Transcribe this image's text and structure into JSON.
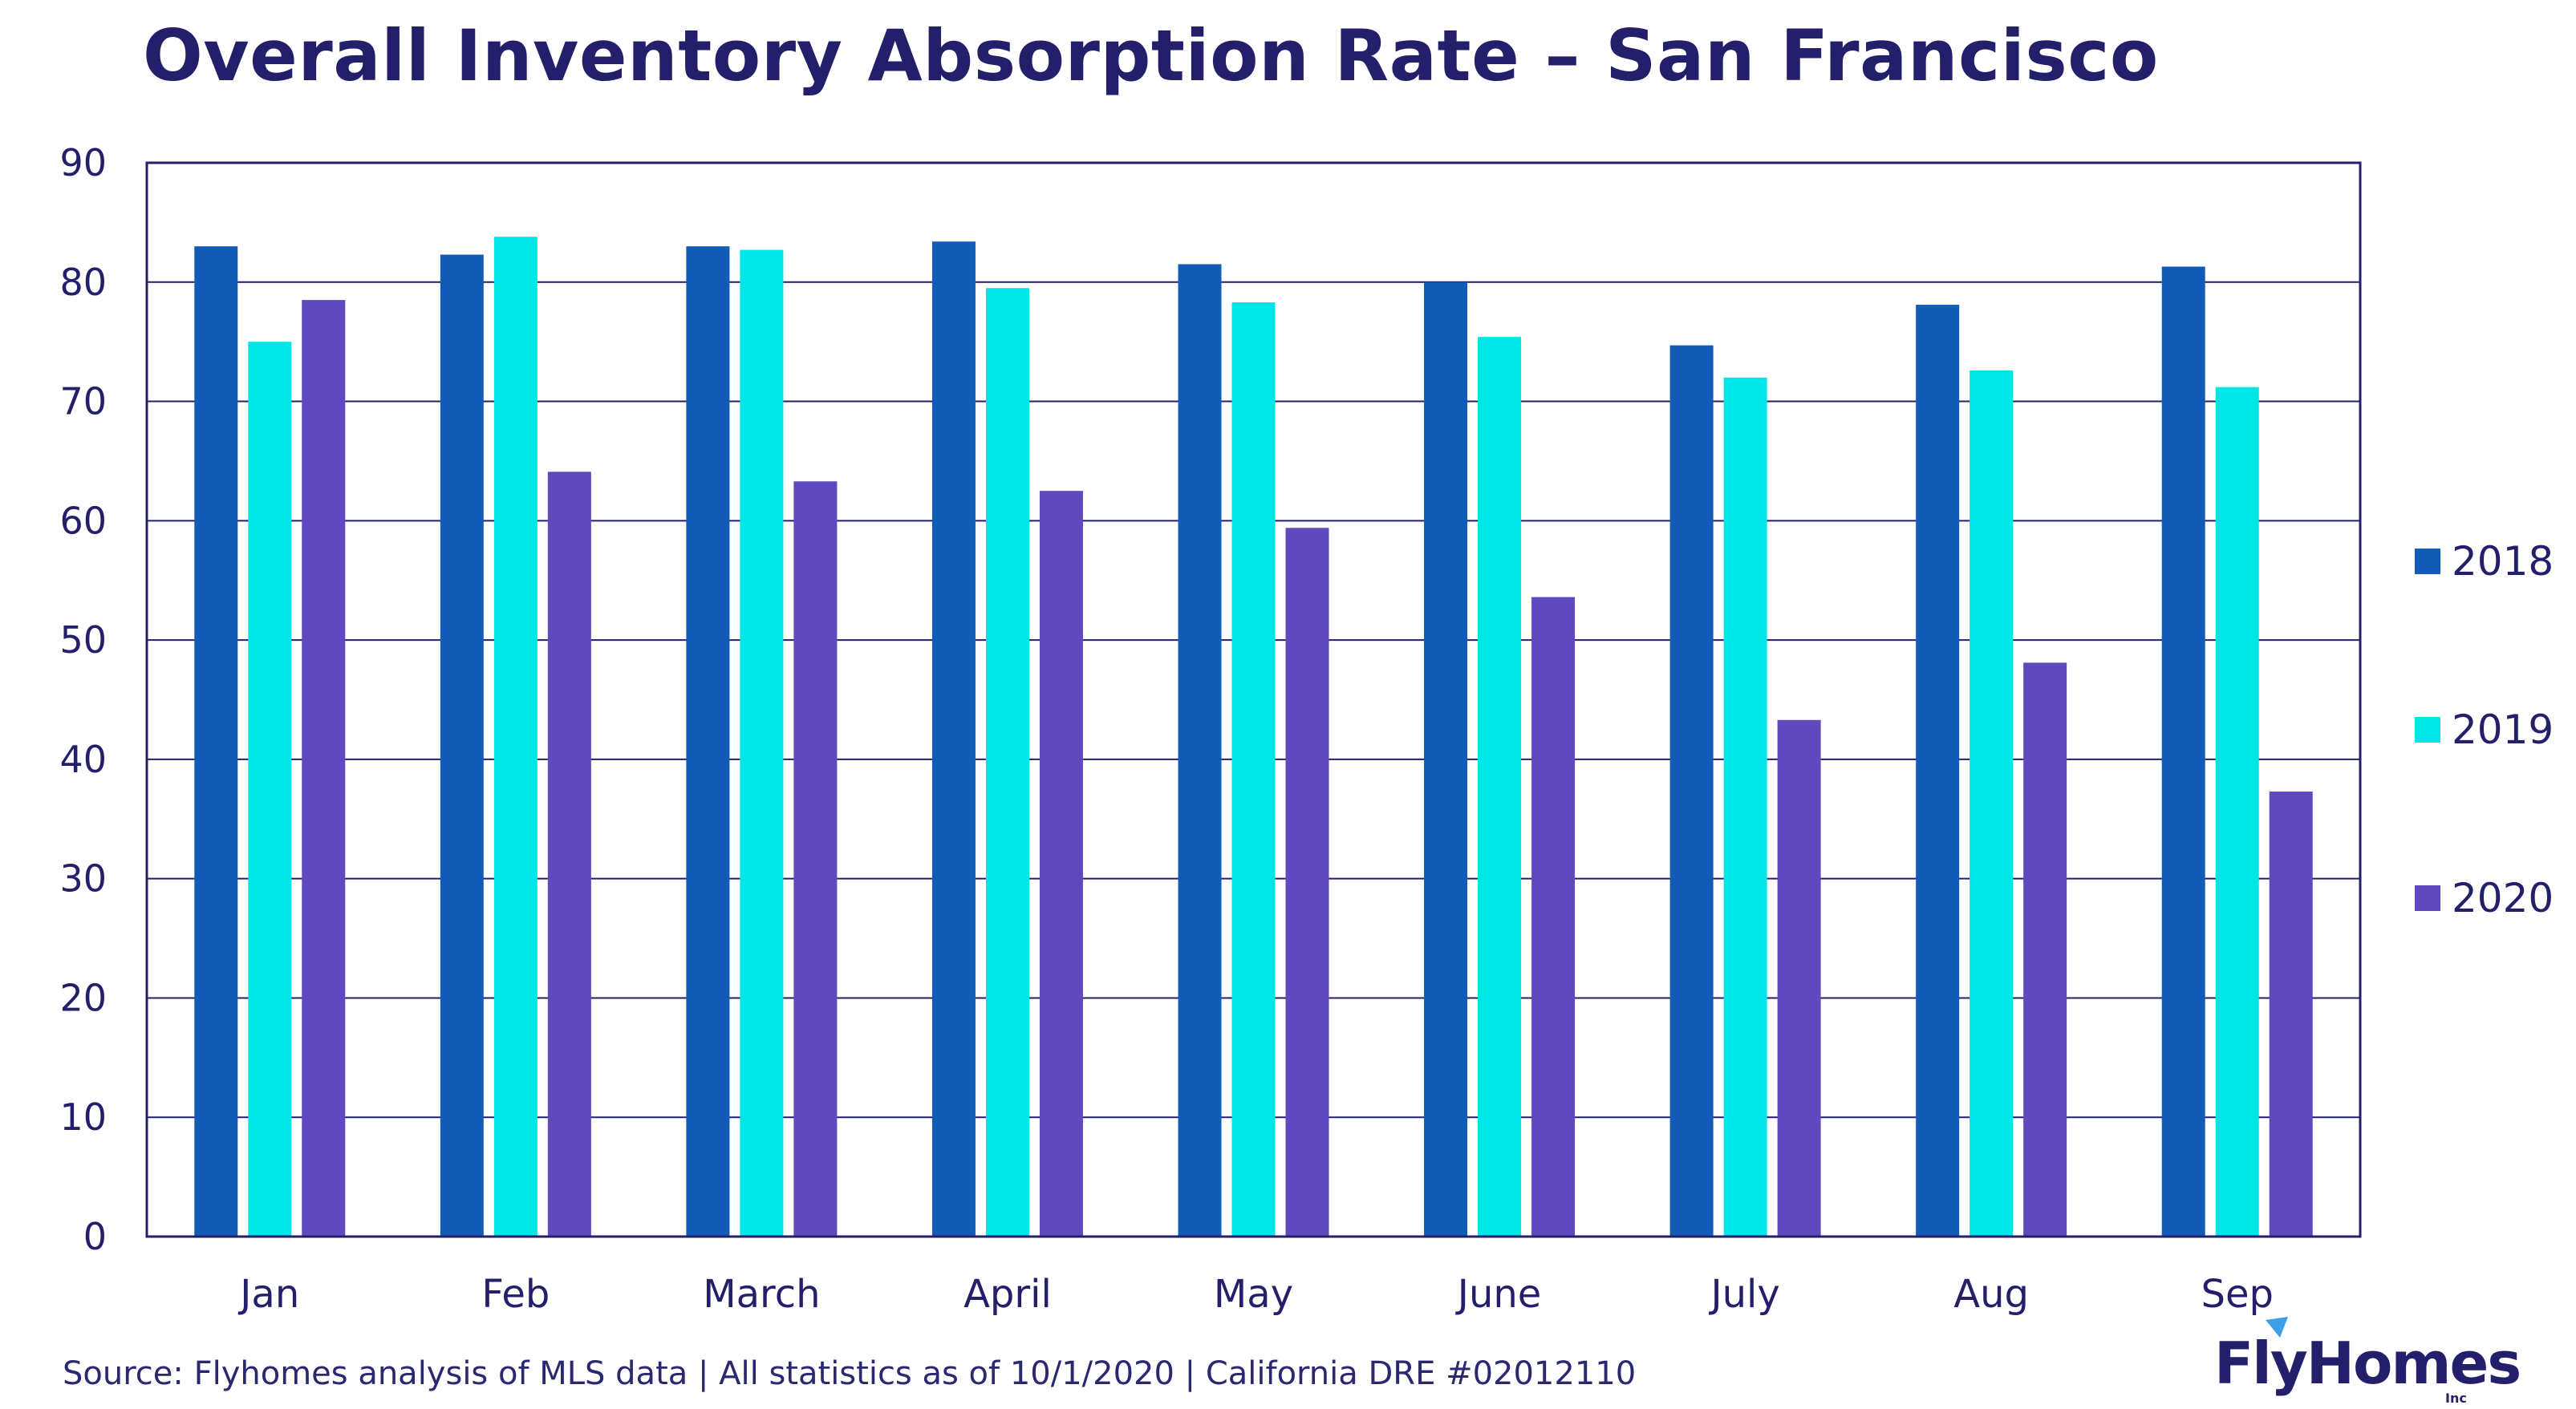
{
  "chart_data": {
    "type": "bar",
    "title": "Overall Inventory Absorption Rate – San Francisco",
    "xlabel": "",
    "ylabel": "",
    "ylim": [
      0,
      90
    ],
    "yticks": [
      0,
      10,
      20,
      30,
      40,
      50,
      60,
      70,
      80,
      90
    ],
    "grid": true,
    "legend_position": "right",
    "categories": [
      "Jan",
      "Feb",
      "March",
      "April",
      "May",
      "June",
      "July",
      "Aug",
      "Sep"
    ],
    "series": [
      {
        "name": "2018",
        "color": "#125cb8",
        "values": [
          83.0,
          82.3,
          83.0,
          83.4,
          81.5,
          80.0,
          74.7,
          78.1,
          81.3
        ]
      },
      {
        "name": "2019",
        "color": "#00e5e5",
        "values": [
          75.0,
          83.8,
          82.7,
          79.5,
          78.3,
          75.4,
          72.0,
          72.6,
          71.2
        ]
      },
      {
        "name": "2020",
        "color": "#6048bf",
        "values": [
          78.5,
          64.1,
          63.3,
          62.5,
          59.4,
          53.6,
          43.3,
          48.1,
          37.3
        ]
      }
    ]
  },
  "footer": {
    "source": "Source: Flyhomes analysis of MLS data | All statistics as of 10/1/2020 | California DRE #02012110"
  },
  "logo": {
    "text": "FlyHomes",
    "suffix": "Inc"
  }
}
